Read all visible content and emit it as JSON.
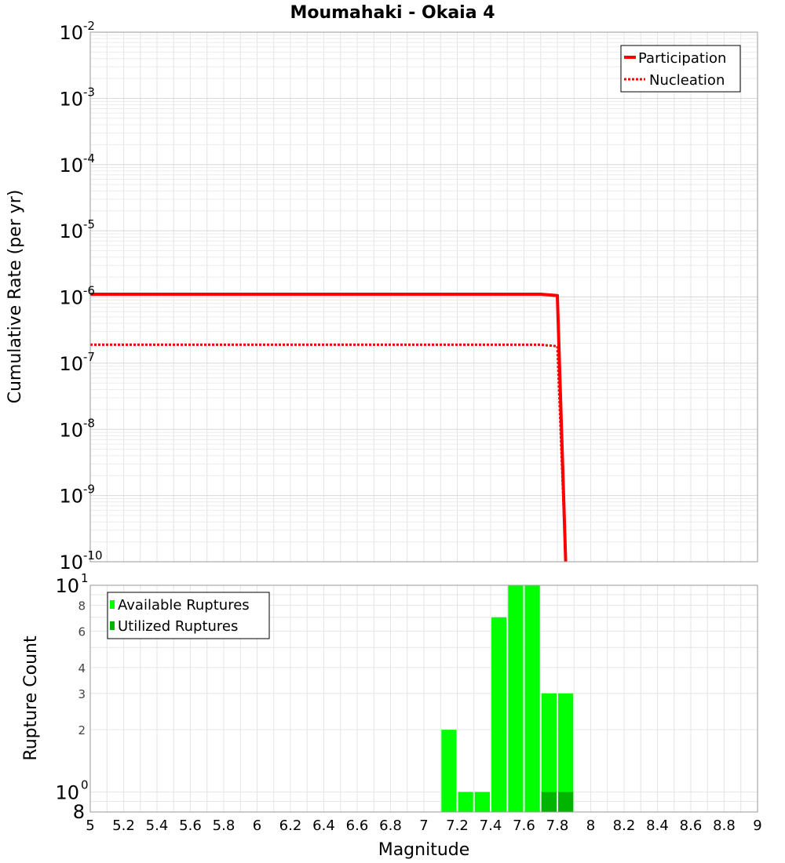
{
  "chart_data": [
    {
      "type": "line",
      "title": "Moumahaki - Okaia 4",
      "xlabel": "",
      "ylabel": "Cumulative Rate (per yr)",
      "xlim": [
        5,
        9
      ],
      "ylim": [
        1e-10,
        0.01
      ],
      "yscale": "log",
      "y_ticks": [
        {
          "base": "10",
          "exp": "-2"
        },
        {
          "base": "10",
          "exp": "-3"
        },
        {
          "base": "10",
          "exp": "-4"
        },
        {
          "base": "10",
          "exp": "-5"
        },
        {
          "base": "10",
          "exp": "-6"
        },
        {
          "base": "10",
          "exp": "-7"
        },
        {
          "base": "10",
          "exp": "-8"
        },
        {
          "base": "10",
          "exp": "-9"
        },
        {
          "base": "10",
          "exp": "-10"
        }
      ],
      "legend": {
        "position": "top-right",
        "entries": [
          "Participation",
          "Nucleation"
        ]
      },
      "series": [
        {
          "name": "Participation",
          "color": "#ff0000",
          "style": "solid",
          "x": [
            5.0,
            7.7,
            7.8,
            7.85
          ],
          "y": [
            1.1e-06,
            1.1e-06,
            1.05e-06,
            1e-10
          ]
        },
        {
          "name": "Nucleation",
          "color": "#ff0000",
          "style": "dotted",
          "x": [
            5.0,
            7.7,
            7.8,
            7.85
          ],
          "y": [
            1.9e-07,
            1.9e-07,
            1.8e-07,
            1e-10
          ]
        }
      ]
    },
    {
      "type": "bar",
      "title": "",
      "xlabel": "Magnitude",
      "ylabel": "Rupture Count",
      "xlim": [
        5,
        9
      ],
      "ylim": [
        0.8,
        10
      ],
      "yscale": "log",
      "x_ticks": [
        "5",
        "5.2",
        "5.4",
        "5.6",
        "5.8",
        "6",
        "6.2",
        "6.4",
        "6.6",
        "6.8",
        "7",
        "7.2",
        "7.4",
        "7.6",
        "7.8",
        "8",
        "8.2",
        "8.4",
        "8.6",
        "8.8",
        "9"
      ],
      "y_ticks_major": [
        {
          "base": "10",
          "exp": "1",
          "value": 10
        },
        {
          "base": "10",
          "exp": "0",
          "value": 1
        }
      ],
      "y_ticks_minor": [
        {
          "label": "8",
          "value": 8
        },
        {
          "label": "6",
          "value": 6
        },
        {
          "label": "4",
          "value": 4
        },
        {
          "label": "3",
          "value": 3
        },
        {
          "label": "2",
          "value": 2
        }
      ],
      "y_bottom_label": "8",
      "legend": {
        "position": "top-left",
        "entries": [
          "Available Ruptures",
          "Utilized Ruptures"
        ]
      },
      "bin_width": 0.1,
      "series": [
        {
          "name": "Available Ruptures",
          "color": "#00ff00",
          "x": [
            7.15,
            7.25,
            7.35,
            7.45,
            7.55,
            7.65,
            7.75,
            7.85
          ],
          "values": [
            2,
            1,
            1,
            7,
            10,
            10,
            3,
            3
          ]
        },
        {
          "name": "Utilized Ruptures",
          "color": "#00b400",
          "x": [
            7.75,
            7.85
          ],
          "values": [
            1,
            1
          ]
        }
      ]
    }
  ]
}
